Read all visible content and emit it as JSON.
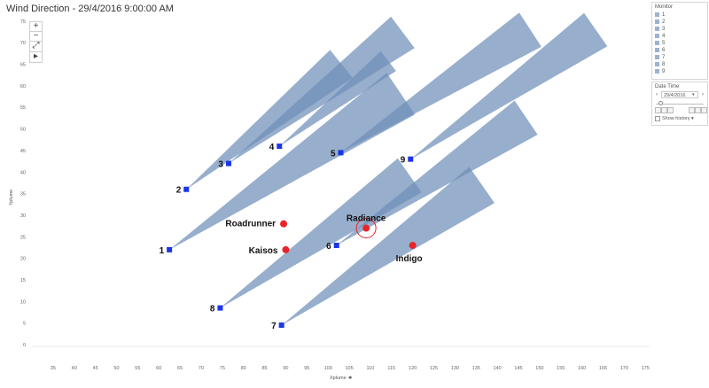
{
  "title": "Wind Direction - 29/4/2016 9:00:00 AM",
  "chart_data": {
    "type": "scatter",
    "xlabel": "Xplume",
    "ylabel": "Yplume",
    "xlim": [
      30,
      176
    ],
    "ylim": [
      0,
      76
    ],
    "x_ticks": [
      35,
      40,
      45,
      50,
      55,
      60,
      65,
      70,
      75,
      80,
      85,
      90,
      95,
      100,
      105,
      110,
      115,
      120,
      125,
      130,
      135,
      140,
      145,
      150,
      155,
      160,
      165,
      170,
      175
    ],
    "y_ticks": [
      0,
      5,
      10,
      15,
      20,
      25,
      30,
      35,
      40,
      45,
      50,
      55,
      60,
      65,
      70,
      75
    ],
    "grid": false,
    "monitors": [
      {
        "label": "1",
        "x": 62.5,
        "y": 22.0
      },
      {
        "label": "2",
        "x": 66.5,
        "y": 36.0
      },
      {
        "label": "3",
        "x": 76.5,
        "y": 42.0
      },
      {
        "label": "4",
        "x": 88.5,
        "y": 46.0
      },
      {
        "label": "5",
        "x": 103.0,
        "y": 44.5
      },
      {
        "label": "6",
        "x": 102.0,
        "y": 23.0
      },
      {
        "label": "7",
        "x": 89.0,
        "y": 4.5
      },
      {
        "label": "8",
        "x": 74.5,
        "y": 8.5
      },
      {
        "label": "9",
        "x": 119.5,
        "y": 43.0
      }
    ],
    "factories": [
      {
        "label": "Roadrunner",
        "x": 89.5,
        "y": 28.0,
        "highlighted": false
      },
      {
        "label": "Kaisos",
        "x": 90.0,
        "y": 22.0,
        "highlighted": false
      },
      {
        "label": "Radiance",
        "x": 109.0,
        "y": 27.0,
        "highlighted": true
      },
      {
        "label": "Indigo",
        "x": 120.0,
        "y": 23.0,
        "highlighted": false
      }
    ],
    "plumes": [
      {
        "monitor": "1",
        "x": 62.5,
        "y": 22.0,
        "angle_deg": 34,
        "length": 105
      },
      {
        "monitor": "2",
        "x": 66.5,
        "y": 36.0,
        "angle_deg": 39,
        "length": 75
      },
      {
        "monitor": "3",
        "x": 76.5,
        "y": 42.0,
        "angle_deg": 37,
        "length": 82
      },
      {
        "monitor": "4",
        "x": 88.5,
        "y": 46.0,
        "angle_deg": 38,
        "length": 52
      },
      {
        "monitor": "5",
        "x": 103.0,
        "y": 44.5,
        "angle_deg": 33,
        "length": 85
      },
      {
        "monitor": "6",
        "x": 102.0,
        "y": 23.0,
        "angle_deg": 34,
        "length": 86
      },
      {
        "monitor": "7",
        "x": 89.0,
        "y": 4.5,
        "angle_deg": 35,
        "length": 92
      },
      {
        "monitor": "8",
        "x": 74.5,
        "y": 8.5,
        "angle_deg": 35,
        "length": 87
      },
      {
        "monitor": "9",
        "x": 119.5,
        "y": 43.0,
        "angle_deg": 35,
        "length": 85
      }
    ],
    "colors": {
      "monitor": "#1a35e8",
      "factory": "#e8242a",
      "plume": "#6f8fb8",
      "highlight_ring": "#e8242a"
    }
  },
  "zoom_controls": {
    "zoom_in": "+",
    "zoom_out": "−",
    "reset": "⤢",
    "play": "▸"
  },
  "legend": {
    "title": "Monitor",
    "items": [
      "1",
      "2",
      "3",
      "4",
      "5",
      "6",
      "7",
      "8",
      "9"
    ],
    "swatch_color": "#9cb2cf"
  },
  "datetime": {
    "title": "Date Time",
    "value": "29/4/2016",
    "prev": "‹",
    "next": "›",
    "show_history": "Show history"
  }
}
